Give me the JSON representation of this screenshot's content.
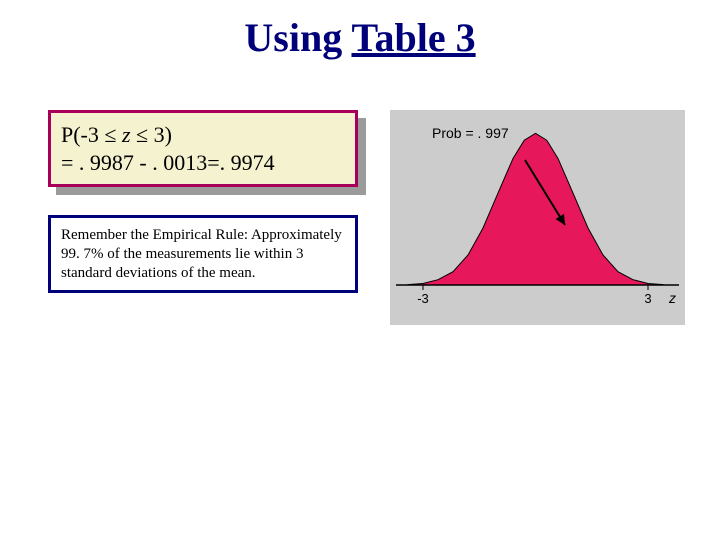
{
  "title": {
    "plain": "Using ",
    "underlined": "Table 3",
    "color": "#00007a",
    "fontsize": 40
  },
  "prob_box": {
    "prefix": "P(-3 ",
    "leq1": "≤",
    "zvar": " z ",
    "leq2": "≤",
    "suffix": " 3)",
    "line2": "= . 9987 - . 0013=. 9974",
    "bg_color": "#f5f2d0",
    "border_color": "#a8005a",
    "shadow_color": "#9b9b9b",
    "fontsize": 22
  },
  "rule_box": {
    "text": "Remember the Empirical Rule: Approximately 99. 7% of the measurements lie within 3 standard deviations of the mean.",
    "border_color": "#00007a",
    "fontsize": 15
  },
  "figure": {
    "type": "normal-curve",
    "bg_color": "#cccccc",
    "curve_fill": "#e6185b",
    "curve_stroke": "#000000",
    "axis_color": "#000000",
    "arrow_color": "#000000",
    "prob_label": "Prob = . 997",
    "label_fontsize": 14,
    "xaxis": {
      "xmin": -3.4,
      "xmax": 3.4,
      "tick_labels": [
        "-3",
        "3"
      ],
      "tick_positions": [
        -3,
        3
      ],
      "axis_label": "z"
    },
    "curve_points": [
      [
        -3.4,
        0.001
      ],
      [
        -3.0,
        0.004
      ],
      [
        -2.6,
        0.014
      ],
      [
        -2.2,
        0.035
      ],
      [
        -1.8,
        0.079
      ],
      [
        -1.4,
        0.15
      ],
      [
        -1.0,
        0.242
      ],
      [
        -0.6,
        0.333
      ],
      [
        -0.3,
        0.381
      ],
      [
        0.0,
        0.399
      ],
      [
        0.3,
        0.381
      ],
      [
        0.6,
        0.333
      ],
      [
        1.0,
        0.242
      ],
      [
        1.4,
        0.15
      ],
      [
        1.8,
        0.079
      ],
      [
        2.2,
        0.035
      ],
      [
        2.6,
        0.014
      ],
      [
        3.0,
        0.004
      ],
      [
        3.4,
        0.001
      ]
    ],
    "arrow": {
      "from": [
        135,
        50
      ],
      "to": [
        175,
        115
      ]
    }
  }
}
